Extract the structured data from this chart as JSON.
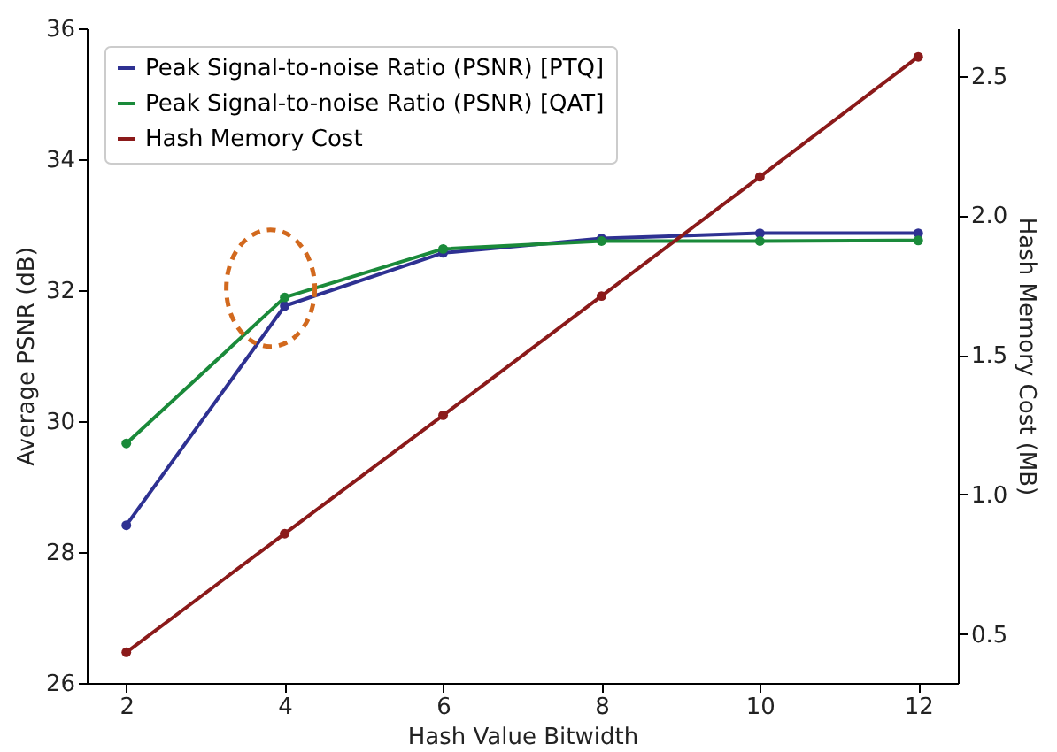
{
  "chart_data": {
    "type": "line",
    "xlabel": "Hash Value Bitwidth",
    "ylabel": "Average PSNR (dB)",
    "y2label": "Hash Memory Cost (MB)",
    "x": [
      2,
      4,
      6,
      8,
      10,
      12
    ],
    "series": [
      {
        "name": "Peak Signal-to-noise Ratio (PSNR) [PTQ]",
        "color": "#2e3192",
        "values": [
          28.41,
          31.76,
          32.57,
          32.79,
          32.87,
          32.87
        ]
      },
      {
        "name": "Peak Signal-to-noise Ratio (PSNR) [QAT]",
        "color": "#1a8a3a",
        "values": [
          29.66,
          31.89,
          32.63,
          32.75,
          32.75,
          32.76
        ]
      },
      {
        "name": "Hash Memory Cost",
        "color": "#8b1a1a",
        "axis": "y2",
        "values": [
          0.435,
          0.86,
          1.284,
          1.711,
          2.138,
          2.568
        ]
      }
    ],
    "xlim": [
      1.5,
      12.5
    ],
    "xticks": [
      2,
      4,
      6,
      8,
      10,
      12
    ],
    "ylim": [
      26,
      36
    ],
    "yticks": [
      26,
      28,
      30,
      32,
      34,
      36
    ],
    "y2lim": [
      0.325,
      2.67
    ],
    "y2ticks": [
      0.5,
      {
        "value": 1,
        "label": "1.0"
      },
      1.5,
      {
        "value": 2,
        "label": "2.0"
      },
      2.5
    ],
    "grid": false,
    "legend": "top left",
    "marker": "circle",
    "line_style": "solid"
  }
}
